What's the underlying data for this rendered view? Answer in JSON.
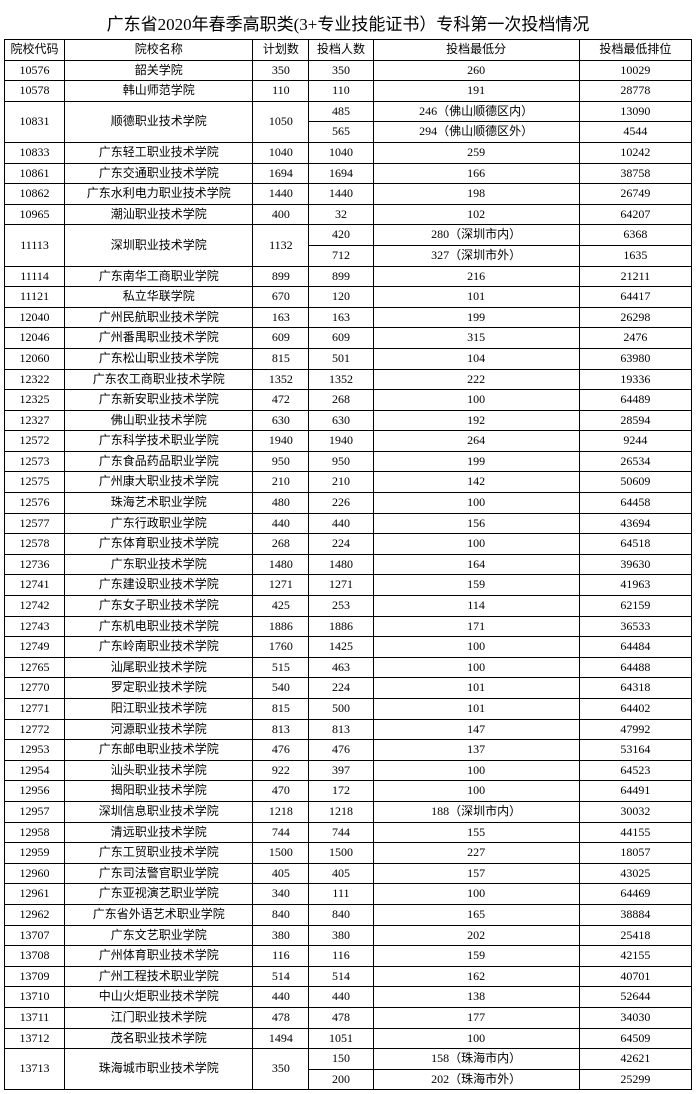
{
  "title": "广东省2020年春季高职类(3+专业技能证书）专科第一次投档情况",
  "headers": [
    "院校代码",
    "院校名称",
    "计划数",
    "投档人数",
    "投档最低分",
    "投档最低排位"
  ],
  "rows": [
    {
      "code": "10576",
      "name": "韶关学院",
      "plan": "350",
      "cast": "350",
      "splits": [
        {
          "min": "260",
          "rank": "10029"
        }
      ]
    },
    {
      "code": "10578",
      "name": "韩山师范学院",
      "plan": "110",
      "cast": "110",
      "splits": [
        {
          "min": "191",
          "rank": "28778"
        }
      ]
    },
    {
      "code": "10831",
      "name": "顺德职业技术学院",
      "plan": "1050",
      "splits": [
        {
          "cast": "485",
          "min": "246（佛山顺德区内）",
          "rank": "13090"
        },
        {
          "cast": "565",
          "min": "294（佛山顺德区外）",
          "rank": "4544"
        }
      ]
    },
    {
      "code": "10833",
      "name": "广东轻工职业技术学院",
      "plan": "1040",
      "cast": "1040",
      "splits": [
        {
          "min": "259",
          "rank": "10242"
        }
      ]
    },
    {
      "code": "10861",
      "name": "广东交通职业技术学院",
      "plan": "1694",
      "cast": "1694",
      "splits": [
        {
          "min": "166",
          "rank": "38758"
        }
      ]
    },
    {
      "code": "10862",
      "name": "广东水利电力职业技术学院",
      "plan": "1440",
      "cast": "1440",
      "splits": [
        {
          "min": "198",
          "rank": "26749"
        }
      ]
    },
    {
      "code": "10965",
      "name": "潮汕职业技术学院",
      "plan": "400",
      "cast": "32",
      "splits": [
        {
          "min": "102",
          "rank": "64207"
        }
      ]
    },
    {
      "code": "11113",
      "name": "深圳职业技术学院",
      "plan": "1132",
      "splits": [
        {
          "cast": "420",
          "min": "280（深圳市内）",
          "rank": "6368"
        },
        {
          "cast": "712",
          "min": "327（深圳市外）",
          "rank": "1635"
        }
      ]
    },
    {
      "code": "11114",
      "name": "广东南华工商职业学院",
      "plan": "899",
      "cast": "899",
      "splits": [
        {
          "min": "216",
          "rank": "21211"
        }
      ]
    },
    {
      "code": "11121",
      "name": "私立华联学院",
      "plan": "670",
      "cast": "120",
      "splits": [
        {
          "min": "101",
          "rank": "64417"
        }
      ]
    },
    {
      "code": "12040",
      "name": "广州民航职业技术学院",
      "plan": "163",
      "cast": "163",
      "splits": [
        {
          "min": "199",
          "rank": "26298"
        }
      ]
    },
    {
      "code": "12046",
      "name": "广州番禺职业技术学院",
      "plan": "609",
      "cast": "609",
      "splits": [
        {
          "min": "315",
          "rank": "2476"
        }
      ]
    },
    {
      "code": "12060",
      "name": "广东松山职业技术学院",
      "plan": "815",
      "cast": "501",
      "splits": [
        {
          "min": "104",
          "rank": "63980"
        }
      ]
    },
    {
      "code": "12322",
      "name": "广东农工商职业技术学院",
      "plan": "1352",
      "cast": "1352",
      "splits": [
        {
          "min": "222",
          "rank": "19336"
        }
      ]
    },
    {
      "code": "12325",
      "name": "广东新安职业技术学院",
      "plan": "472",
      "cast": "268",
      "splits": [
        {
          "min": "100",
          "rank": "64489"
        }
      ]
    },
    {
      "code": "12327",
      "name": "佛山职业技术学院",
      "plan": "630",
      "cast": "630",
      "splits": [
        {
          "min": "192",
          "rank": "28594"
        }
      ]
    },
    {
      "code": "12572",
      "name": "广东科学技术职业学院",
      "plan": "1940",
      "cast": "1940",
      "splits": [
        {
          "min": "264",
          "rank": "9244"
        }
      ]
    },
    {
      "code": "12573",
      "name": "广东食品药品职业学院",
      "plan": "950",
      "cast": "950",
      "splits": [
        {
          "min": "199",
          "rank": "26534"
        }
      ]
    },
    {
      "code": "12575",
      "name": "广州康大职业技术学院",
      "plan": "210",
      "cast": "210",
      "splits": [
        {
          "min": "142",
          "rank": "50609"
        }
      ]
    },
    {
      "code": "12576",
      "name": "珠海艺术职业学院",
      "plan": "480",
      "cast": "226",
      "splits": [
        {
          "min": "100",
          "rank": "64458"
        }
      ]
    },
    {
      "code": "12577",
      "name": "广东行政职业学院",
      "plan": "440",
      "cast": "440",
      "splits": [
        {
          "min": "156",
          "rank": "43694"
        }
      ]
    },
    {
      "code": "12578",
      "name": "广东体育职业技术学院",
      "plan": "268",
      "cast": "224",
      "splits": [
        {
          "min": "100",
          "rank": "64518"
        }
      ]
    },
    {
      "code": "12736",
      "name": "广东职业技术学院",
      "plan": "1480",
      "cast": "1480",
      "splits": [
        {
          "min": "164",
          "rank": "39630"
        }
      ]
    },
    {
      "code": "12741",
      "name": "广东建设职业技术学院",
      "plan": "1271",
      "cast": "1271",
      "splits": [
        {
          "min": "159",
          "rank": "41963"
        }
      ]
    },
    {
      "code": "12742",
      "name": "广东女子职业技术学院",
      "plan": "425",
      "cast": "253",
      "splits": [
        {
          "min": "114",
          "rank": "62159"
        }
      ]
    },
    {
      "code": "12743",
      "name": "广东机电职业技术学院",
      "plan": "1886",
      "cast": "1886",
      "splits": [
        {
          "min": "171",
          "rank": "36533"
        }
      ]
    },
    {
      "code": "12749",
      "name": "广东岭南职业技术学院",
      "plan": "1760",
      "cast": "1425",
      "splits": [
        {
          "min": "100",
          "rank": "64484"
        }
      ]
    },
    {
      "code": "12765",
      "name": "汕尾职业技术学院",
      "plan": "515",
      "cast": "463",
      "splits": [
        {
          "min": "100",
          "rank": "64488"
        }
      ]
    },
    {
      "code": "12770",
      "name": "罗定职业技术学院",
      "plan": "540",
      "cast": "224",
      "splits": [
        {
          "min": "101",
          "rank": "64318"
        }
      ]
    },
    {
      "code": "12771",
      "name": "阳江职业技术学院",
      "plan": "815",
      "cast": "500",
      "splits": [
        {
          "min": "101",
          "rank": "64402"
        }
      ]
    },
    {
      "code": "12772",
      "name": "河源职业技术学院",
      "plan": "813",
      "cast": "813",
      "splits": [
        {
          "min": "147",
          "rank": "47992"
        }
      ]
    },
    {
      "code": "12953",
      "name": "广东邮电职业技术学院",
      "plan": "476",
      "cast": "476",
      "splits": [
        {
          "min": "137",
          "rank": "53164"
        }
      ]
    },
    {
      "code": "12954",
      "name": "汕头职业技术学院",
      "plan": "922",
      "cast": "397",
      "splits": [
        {
          "min": "100",
          "rank": "64523"
        }
      ]
    },
    {
      "code": "12956",
      "name": "揭阳职业技术学院",
      "plan": "470",
      "cast": "172",
      "splits": [
        {
          "min": "100",
          "rank": "64491"
        }
      ]
    },
    {
      "code": "12957",
      "name": "深圳信息职业技术学院",
      "plan": "1218",
      "cast": "1218",
      "splits": [
        {
          "min": "188（深圳市内）",
          "rank": "30032"
        }
      ]
    },
    {
      "code": "12958",
      "name": "清远职业技术学院",
      "plan": "744",
      "cast": "744",
      "splits": [
        {
          "min": "155",
          "rank": "44155"
        }
      ]
    },
    {
      "code": "12959",
      "name": "广东工贸职业技术学院",
      "plan": "1500",
      "cast": "1500",
      "splits": [
        {
          "min": "227",
          "rank": "18057"
        }
      ]
    },
    {
      "code": "12960",
      "name": "广东司法警官职业学院",
      "plan": "405",
      "cast": "405",
      "splits": [
        {
          "min": "157",
          "rank": "43025"
        }
      ]
    },
    {
      "code": "12961",
      "name": "广东亚视演艺职业学院",
      "plan": "340",
      "cast": "111",
      "splits": [
        {
          "min": "100",
          "rank": "64469"
        }
      ]
    },
    {
      "code": "12962",
      "name": "广东省外语艺术职业学院",
      "plan": "840",
      "cast": "840",
      "splits": [
        {
          "min": "165",
          "rank": "38884"
        }
      ]
    },
    {
      "code": "13707",
      "name": "广东文艺职业学院",
      "plan": "380",
      "cast": "380",
      "splits": [
        {
          "min": "202",
          "rank": "25418"
        }
      ]
    },
    {
      "code": "13708",
      "name": "广州体育职业技术学院",
      "plan": "116",
      "cast": "116",
      "splits": [
        {
          "min": "159",
          "rank": "42155"
        }
      ]
    },
    {
      "code": "13709",
      "name": "广州工程技术职业学院",
      "plan": "514",
      "cast": "514",
      "splits": [
        {
          "min": "162",
          "rank": "40701"
        }
      ]
    },
    {
      "code": "13710",
      "name": "中山火炬职业技术学院",
      "plan": "440",
      "cast": "440",
      "splits": [
        {
          "min": "138",
          "rank": "52644"
        }
      ]
    },
    {
      "code": "13711",
      "name": "江门职业技术学院",
      "plan": "478",
      "cast": "478",
      "splits": [
        {
          "min": "177",
          "rank": "34030"
        }
      ]
    },
    {
      "code": "13712",
      "name": "茂名职业技术学院",
      "plan": "1494",
      "cast": "1051",
      "splits": [
        {
          "min": "100",
          "rank": "64509"
        }
      ]
    },
    {
      "code": "13713",
      "name": "珠海城市职业技术学院",
      "plan": "350",
      "splits": [
        {
          "cast": "150",
          "min": "158（珠海市内）",
          "rank": "42621"
        },
        {
          "cast": "200",
          "min": "202（珠海市外）",
          "rank": "25299"
        }
      ]
    }
  ]
}
